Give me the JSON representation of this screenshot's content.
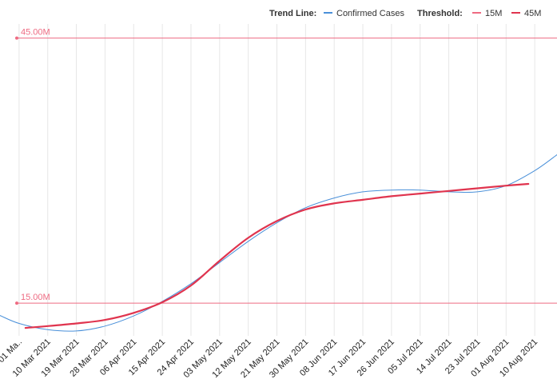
{
  "legend": {
    "trend_title": "Trend Line:",
    "threshold_title": "Threshold:"
  },
  "colors": {
    "confirmed": "#4a90d9",
    "trend": "#e0344e",
    "threshold": "#ee6b82",
    "grid": "#e6e6e6"
  },
  "chart_data": {
    "type": "line",
    "x_tick_labels": [
      "01 Ma..",
      "10 Mar 2021",
      "19 Mar 2021",
      "28 Mar 2021",
      "06 Apr 2021",
      "15 Apr 2021",
      "24 Apr 2021",
      "03 May 2021",
      "12 May 2021",
      "21 May 2021",
      "30 May 2021",
      "08 Jun 2021",
      "17 Jun 2021",
      "26 Jun 2021",
      "05 Jul 2021",
      "14 Jul 2021",
      "23 Jul 2021",
      "01 Aug 2021",
      "10 Aug 2021"
    ],
    "x_days": [
      0,
      9,
      18,
      27,
      36,
      45,
      54,
      63,
      72,
      81,
      90,
      99,
      108,
      117,
      126,
      135,
      144,
      153,
      162
    ],
    "x_range": [
      -6,
      169
    ],
    "y_range": [
      11.3,
      46.6
    ],
    "grid": true,
    "legend_position": "top-right",
    "series": [
      {
        "name": "Confirmed Cases",
        "x": [
          -6,
          0,
          9,
          18,
          27,
          36,
          45,
          54,
          63,
          72,
          81,
          90,
          99,
          108,
          117,
          126,
          135,
          144,
          153,
          162,
          169
        ],
        "y": [
          13.6,
          12.7,
          12.0,
          11.85,
          12.4,
          13.55,
          15.2,
          17.2,
          19.6,
          22.0,
          24.1,
          25.8,
          26.9,
          27.6,
          27.8,
          27.8,
          27.6,
          27.6,
          28.3,
          30.0,
          31.8
        ]
      },
      {
        "name": "",
        "x": [
          2,
          9,
          18,
          27,
          36,
          45,
          54,
          63,
          72,
          81,
          90,
          99,
          108,
          117,
          126,
          135,
          144,
          153,
          160
        ],
        "y": [
          12.2,
          12.4,
          12.7,
          13.1,
          13.9,
          15.1,
          17.0,
          19.8,
          22.4,
          24.3,
          25.6,
          26.3,
          26.7,
          27.1,
          27.4,
          27.7,
          28.0,
          28.3,
          28.5
        ]
      }
    ],
    "thresholds": [
      {
        "name": "15M",
        "value": 15.0,
        "label": "15.00M"
      },
      {
        "name": "45M",
        "value": 45.0,
        "label": "45.00M"
      }
    ]
  }
}
